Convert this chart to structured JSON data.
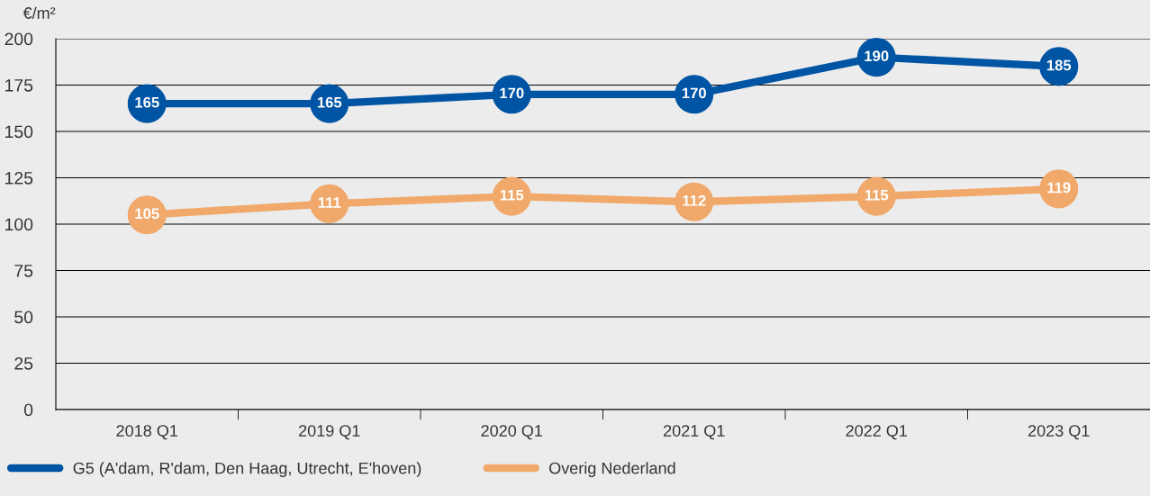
{
  "chart_data": {
    "type": "line",
    "ylabel": "€/m²",
    "categories": [
      "2018 Q1",
      "2019 Q1",
      "2020 Q1",
      "2021 Q1",
      "2022 Q1",
      "2023 Q1"
    ],
    "series": [
      {
        "name": "G5 (A'dam, R'dam, Den Haag, Utrecht, E'hoven)",
        "color": "#0054a4",
        "values": [
          165,
          165,
          170,
          170,
          190,
          185
        ]
      },
      {
        "name": "Overig Nederland",
        "color": "#f0a96b",
        "values": [
          105,
          111,
          115,
          112,
          115,
          119
        ]
      }
    ],
    "ylim": [
      0,
      200
    ],
    "yticks": [
      0,
      25,
      50,
      75,
      100,
      125,
      150,
      175,
      200
    ],
    "grid": "y",
    "legend": "bottom left",
    "marker": "circle",
    "line_style": "solid",
    "data_labels": true
  }
}
